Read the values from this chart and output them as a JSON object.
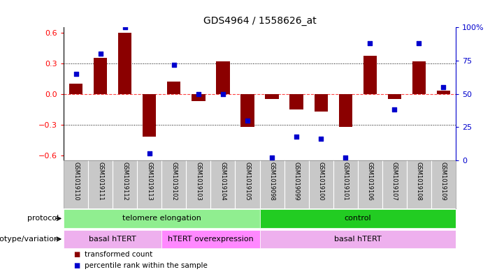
{
  "title": "GDS4964 / 1558626_at",
  "samples": [
    "GSM1019110",
    "GSM1019111",
    "GSM1019112",
    "GSM1019113",
    "GSM1019102",
    "GSM1019103",
    "GSM1019104",
    "GSM1019105",
    "GSM1019098",
    "GSM1019099",
    "GSM1019100",
    "GSM1019101",
    "GSM1019106",
    "GSM1019107",
    "GSM1019108",
    "GSM1019109"
  ],
  "transformed_count": [
    0.1,
    0.35,
    0.6,
    -0.42,
    0.12,
    -0.07,
    0.32,
    -0.32,
    -0.05,
    -0.15,
    -0.17,
    -0.32,
    0.37,
    -0.05,
    0.32,
    0.03
  ],
  "percentile_rank": [
    65,
    80,
    100,
    5,
    72,
    50,
    50,
    30,
    2,
    18,
    16,
    2,
    88,
    38,
    88,
    55
  ],
  "bar_color": "#8B0000",
  "dot_color": "#0000CD",
  "bg_color": "#FFFFFF",
  "plot_bg": "#FFFFFF",
  "zero_line_color": "#FF4444",
  "ylim": [
    -0.65,
    0.65
  ],
  "y2lim": [
    0,
    100
  ],
  "yticks": [
    -0.6,
    -0.3,
    0.0,
    0.3,
    0.6
  ],
  "y2ticks": [
    0,
    25,
    50,
    75,
    100
  ],
  "y2tick_labels": [
    "0",
    "25",
    "50",
    "75",
    "100%"
  ],
  "protocol_groups": [
    {
      "label": "telomere elongation",
      "start": 0,
      "end": 7,
      "color": "#90EE90"
    },
    {
      "label": "control",
      "start": 8,
      "end": 15,
      "color": "#22CC22"
    }
  ],
  "genotype_groups": [
    {
      "label": "basal hTERT",
      "start": 0,
      "end": 3,
      "color": "#EEB0EE"
    },
    {
      "label": "hTERT overexpression",
      "start": 4,
      "end": 7,
      "color": "#FF88FF"
    },
    {
      "label": "basal hTERT",
      "start": 8,
      "end": 15,
      "color": "#EEB0EE"
    }
  ],
  "legend_items": [
    {
      "color": "#8B0000",
      "label": "transformed count"
    },
    {
      "color": "#0000CD",
      "label": "percentile rank within the sample"
    }
  ]
}
